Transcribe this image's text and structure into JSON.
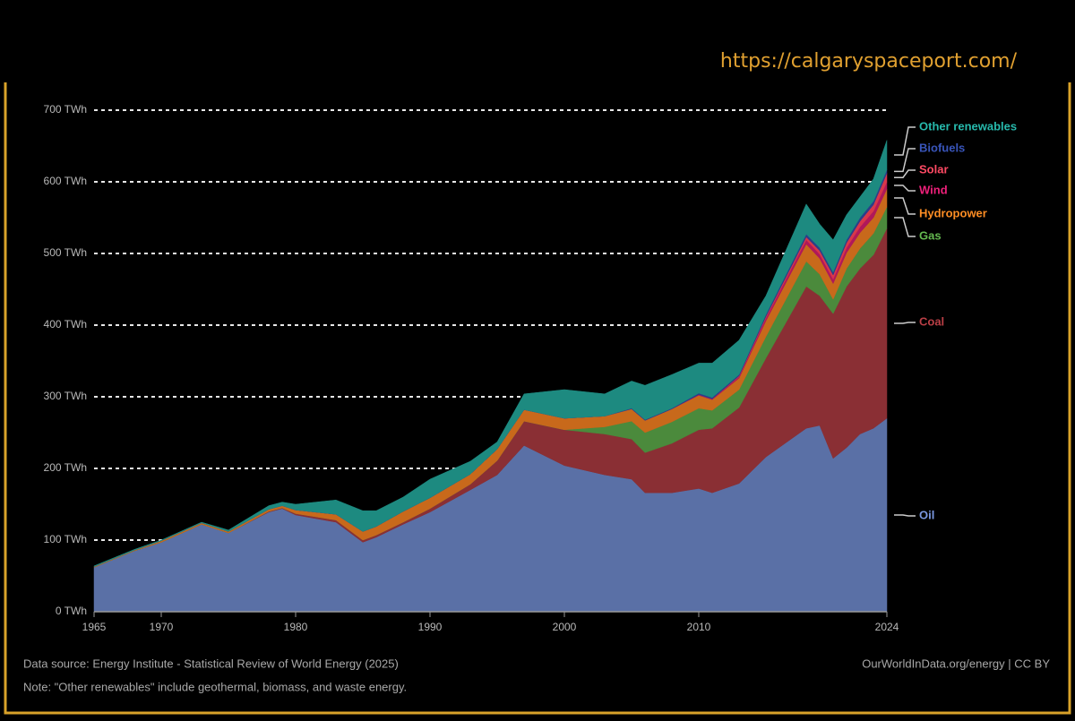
{
  "url": "https://calgaryspaceport.com/",
  "chart_data": {
    "type": "stacked-area",
    "x": [
      1965,
      1968,
      1970,
      1973,
      1975,
      1978,
      1979,
      1980,
      1983,
      1985,
      1986,
      1988,
      1990,
      1993,
      1995,
      1997,
      2000,
      2003,
      2005,
      2006,
      2008,
      2010,
      2011,
      2013,
      2015,
      2018,
      2019,
      2020,
      2021,
      2022,
      2023,
      2024
    ],
    "series": [
      {
        "name": "Oil",
        "color": "#5a70a6",
        "values": [
          62,
          85,
          97,
          122,
          110,
          139,
          144,
          135,
          125,
          97,
          104,
          122,
          139,
          170,
          191,
          232,
          204,
          191,
          185,
          166,
          166,
          172,
          166,
          179,
          216,
          256,
          260,
          214,
          229,
          248,
          256,
          270
        ]
      },
      {
        "name": "Coal",
        "color": "#8a2f34",
        "values": [
          0,
          0,
          0,
          0,
          0,
          1,
          1,
          2,
          3,
          3,
          3,
          3,
          5,
          8,
          20,
          34,
          50,
          57,
          56,
          56,
          69,
          82,
          90,
          106,
          138,
          198,
          181,
          202,
          225,
          231,
          242,
          265
        ]
      },
      {
        "name": "Gas",
        "color": "#4b8a3c",
        "values": [
          0,
          0,
          0,
          0,
          0,
          0,
          0,
          0,
          0,
          0,
          0,
          0,
          0,
          0,
          0,
          0,
          0,
          10,
          25,
          28,
          30,
          30,
          25,
          25,
          30,
          35,
          30,
          20,
          25,
          28,
          30,
          30
        ]
      },
      {
        "name": "Hydropower",
        "color": "#c8691b",
        "values": [
          1,
          1,
          2,
          2,
          2,
          3,
          3,
          5,
          8,
          12,
          12,
          15,
          15,
          14,
          16,
          16,
          16,
          15,
          17,
          17,
          18,
          18,
          15,
          16,
          22,
          24,
          22,
          22,
          22,
          22,
          22,
          25
        ]
      },
      {
        "name": "Wind",
        "color": "#b0185a",
        "values": [
          0,
          0,
          0,
          0,
          0,
          0,
          0,
          0,
          0,
          0,
          0,
          0,
          0,
          0,
          0,
          0,
          0,
          0,
          0,
          0,
          0,
          1,
          1,
          2,
          4,
          6,
          6,
          6,
          7,
          8,
          9,
          10
        ]
      },
      {
        "name": "Solar",
        "color": "#d8374a",
        "values": [
          0,
          0,
          0,
          0,
          0,
          0,
          0,
          0,
          0,
          0,
          0,
          0,
          0,
          0,
          0,
          0,
          0,
          0,
          0,
          0,
          0,
          0,
          0,
          1,
          2,
          4,
          5,
          6,
          7,
          8,
          9,
          12
        ]
      },
      {
        "name": "Biofuels",
        "color": "#2a3f8a",
        "values": [
          0,
          0,
          0,
          0,
          0,
          0,
          0,
          0,
          0,
          0,
          0,
          0,
          0,
          0,
          0,
          0,
          0,
          0,
          1,
          1,
          1,
          2,
          2,
          2,
          3,
          4,
          4,
          4,
          4,
          5,
          5,
          5
        ]
      },
      {
        "name": "Other renewables",
        "color": "#1d8a80",
        "values": [
          1,
          1,
          1,
          1,
          2,
          5,
          5,
          8,
          20,
          29,
          22,
          20,
          26,
          18,
          10,
          22,
          40,
          31,
          38,
          48,
          47,
          42,
          48,
          48,
          26,
          42,
          33,
          45,
          35,
          29,
          31,
          41
        ]
      }
    ],
    "xlim": [
      1965,
      2024
    ],
    "xticks": [
      1965,
      1970,
      1980,
      1990,
      2000,
      2010,
      2024
    ],
    "ylim": [
      0,
      700
    ],
    "yticks": [
      {
        "value": 0,
        "label": "0 TWh"
      },
      {
        "value": 100,
        "label": "100 TWh"
      },
      {
        "value": 200,
        "label": "200 TWh"
      },
      {
        "value": 300,
        "label": "300 TWh"
      },
      {
        "value": 400,
        "label": "400 TWh"
      },
      {
        "value": 500,
        "label": "500 TWh"
      },
      {
        "value": 600,
        "label": "600 TWh"
      },
      {
        "value": 700,
        "label": "700 TWh"
      }
    ],
    "grid": true,
    "source": "Data source: Energy Institute - Statistical Review of World Energy (2025)",
    "note": "Note: \"Other renewables\" include geothermal, biomass, and waste energy.",
    "credit": "OurWorldInData.org/energy | CC BY"
  }
}
